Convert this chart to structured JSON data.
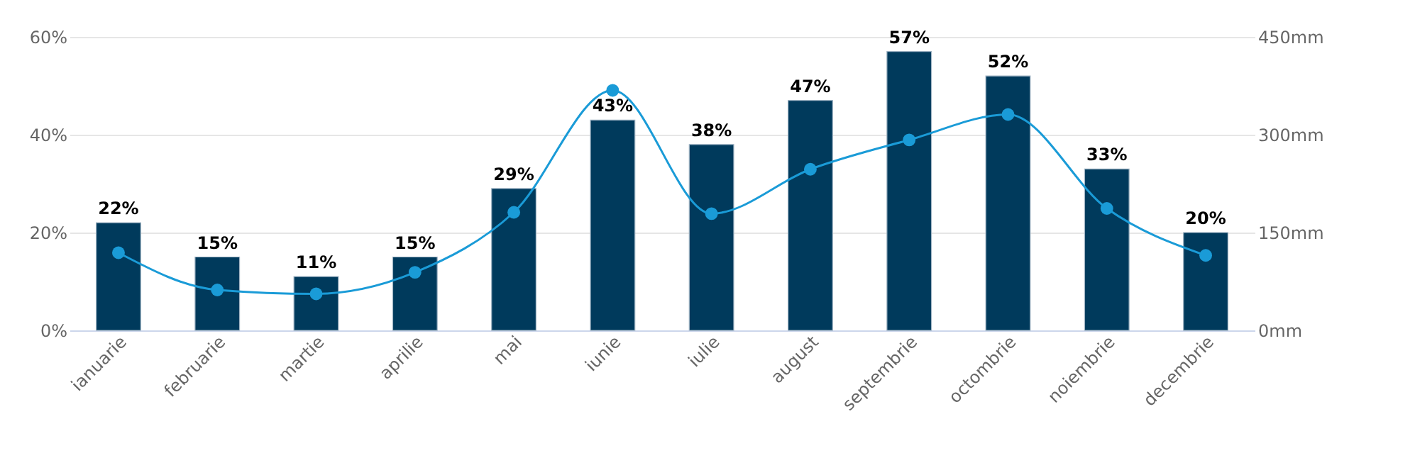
{
  "chart_data": {
    "type": "bar",
    "categories": [
      "ianuarie",
      "februarie",
      "martie",
      "aprilie",
      "mai",
      "iunie",
      "iulie",
      "august",
      "septembrie",
      "octombrie",
      "noiembrie",
      "decembrie"
    ],
    "series": [
      {
        "color": "#003a5c",
        "values": [
          22,
          15,
          11,
          15,
          29,
          43,
          38,
          47,
          57,
          52,
          33,
          20
        ],
        "value_labels": [
          "22%",
          "15%",
          "11%",
          "15%",
          "29%",
          "43%",
          "38%",
          "47%",
          "57%",
          "52%",
          "33%",
          "20%"
        ]
      },
      {
        "type": "line",
        "axis": "y2",
        "color": "#1a9bd7",
        "marker": "circle",
        "values": [
          119,
          62,
          56,
          89,
          181,
          368,
          179,
          247,
          292,
          331,
          187,
          115
        ]
      }
    ],
    "ylim": [
      0,
      60
    ],
    "yticks": [
      {
        "value": 0,
        "label": "0%"
      },
      {
        "value": 20,
        "label": "20%"
      },
      {
        "value": 40,
        "label": "40%"
      },
      {
        "value": 60,
        "label": "60%"
      }
    ],
    "y2lim": [
      0,
      450
    ],
    "y2ticks": [
      {
        "value": 0,
        "label": "0mm"
      },
      {
        "value": 150,
        "label": "150mm"
      },
      {
        "value": 300,
        "label": "300mm"
      },
      {
        "value": 450,
        "label": "450mm"
      }
    ],
    "grid": "y"
  }
}
